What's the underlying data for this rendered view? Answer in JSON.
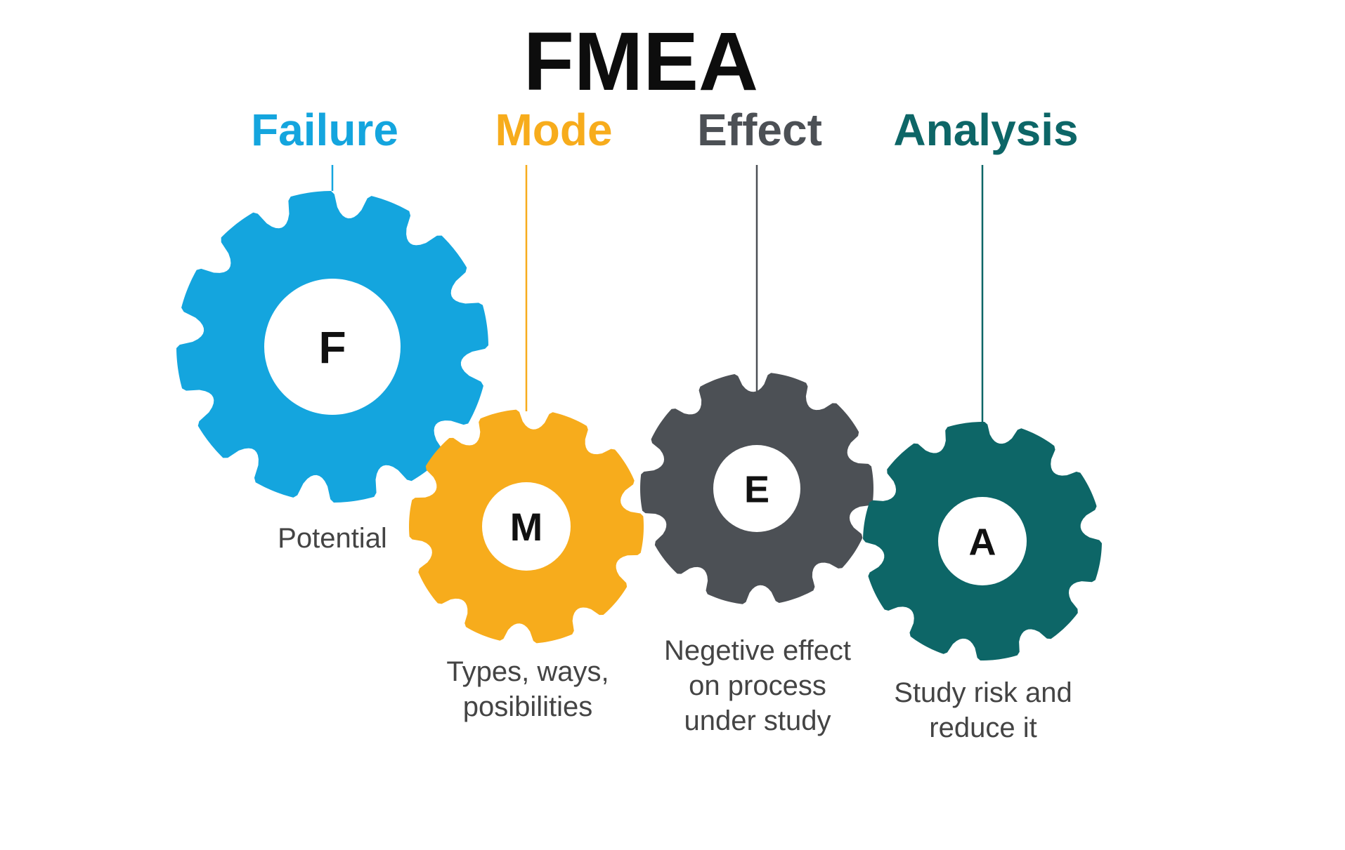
{
  "title": "FMEA",
  "gears": [
    {
      "id": "failure",
      "word": "Failure",
      "letter": "F",
      "color": "#14A5DE",
      "description": [
        "Potential"
      ]
    },
    {
      "id": "mode",
      "word": "Mode",
      "letter": "M",
      "color": "#F7AC1C",
      "description": [
        "Types, ways,",
        "posibilities"
      ]
    },
    {
      "id": "effect",
      "word": "Effect",
      "letter": "E",
      "color": "#4C5055",
      "description": [
        "Negetive effect",
        "on process",
        "under study"
      ]
    },
    {
      "id": "analysis",
      "word": "Analysis",
      "letter": "A",
      "color": "#0D6667",
      "description": [
        "Study risk and",
        "reduce it"
      ]
    }
  ]
}
